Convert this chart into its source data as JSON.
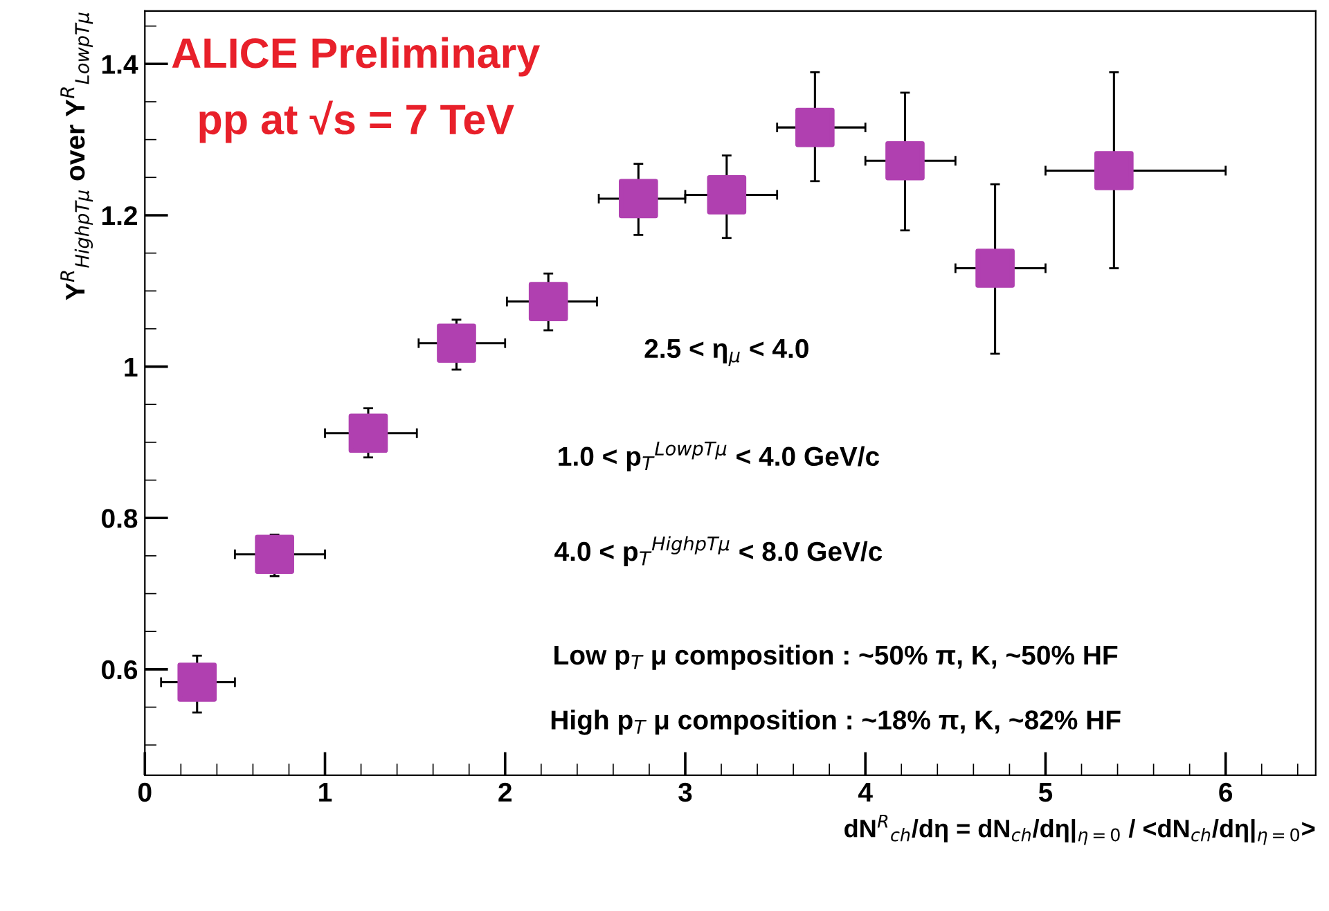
{
  "chart_data": {
    "type": "scatter",
    "title": "ALICE Preliminary",
    "subtitle": "pp at √s = 7 TeV",
    "xlabel": "dN$^{R}$$_{ch}$/dη = dN$_{ch}$/dη|$_{η=0}$ / <dN$_{ch}$/dη|$_{η=0}$>",
    "ylabel": "Y$^{R}$$_{HighpTμ}$ over Y$^{R}$$_{LowpTμ}$",
    "annotations": [
      "2.5 < η$_{μ}$ < 4.0",
      "1.0 < p$_{T}$$^{LowpTμ}$ < 4.0 GeV/c",
      "4.0 < p$_{T}$$^{HighpTμ}$ < 8.0 GeV/c",
      "Low p$_{T}$ μ composition : ~50% π, K, ~50% HF",
      "High p$_{T}$ μ composition : ~18% π, K, ~82% HF"
    ],
    "x": [
      0.29,
      0.72,
      1.24,
      1.73,
      2.24,
      2.74,
      3.23,
      3.72,
      4.22,
      4.72,
      5.38
    ],
    "series": [
      {
        "color": "#b040b0",
        "values": [
          0.583,
          0.752,
          0.912,
          1.031,
          1.086,
          1.222,
          1.227,
          1.316,
          1.272,
          1.13,
          1.259
        ],
        "errors": [
          [
            0.543,
            0.618
          ],
          [
            0.723,
            0.778
          ],
          [
            0.88,
            0.945
          ],
          [
            0.996,
            1.062
          ],
          [
            1.048,
            1.123
          ],
          [
            1.174,
            1.268
          ],
          [
            1.17,
            1.279
          ],
          [
            1.245,
            1.389
          ],
          [
            1.18,
            1.362
          ],
          [
            1.017,
            1.241
          ],
          [
            1.13,
            1.389
          ]
        ],
        "xerrors": [
          [
            0.09,
            0.5
          ],
          [
            0.5,
            1.0
          ],
          [
            1.0,
            1.51
          ],
          [
            1.52,
            2.0
          ],
          [
            2.01,
            2.51
          ],
          [
            2.52,
            3.0
          ],
          [
            3.0,
            3.51
          ],
          [
            3.51,
            4.0
          ],
          [
            4.0,
            4.5
          ],
          [
            4.5,
            5.0
          ],
          [
            5.0,
            6.0
          ]
        ]
      }
    ],
    "xlim": [
      0,
      6.5
    ],
    "ylim": [
      0.46,
      1.47
    ],
    "xticks": [
      0,
      1,
      2,
      3,
      4,
      5,
      6
    ],
    "yticks": [
      0.6,
      0.8,
      {
        "value": 1.0,
        "label": "1"
      },
      1.2,
      1.4
    ],
    "marker": "square",
    "grid": false,
    "legend": false
  }
}
